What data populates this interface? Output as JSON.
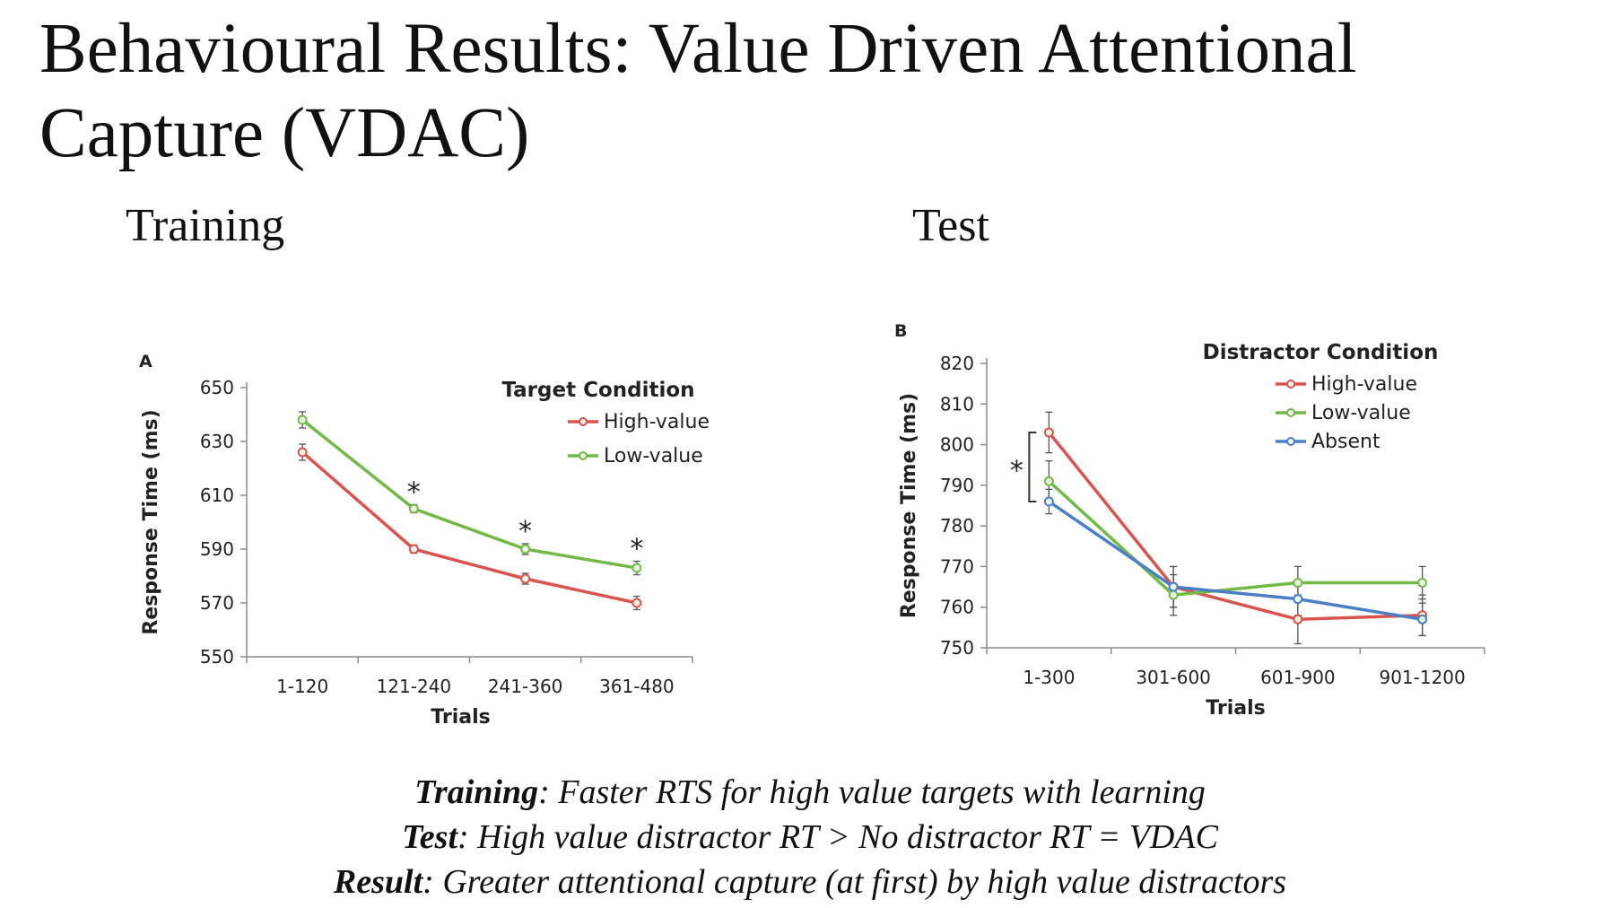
{
  "slide": {
    "title": "Behavioural Results:  Value Driven Attentional Capture (VDAC)",
    "training_heading": "Training",
    "test_heading": "Test"
  },
  "caption": {
    "lines": [
      {
        "bold": "Training",
        "rest": ": Faster RTS for high value targets with learning"
      },
      {
        "bold": "Test",
        "rest": ": High value distractor RT > No distractor RT = VDAC"
      },
      {
        "bold": "Result",
        "rest": ": Greater attentional capture (at first) by high value distractors"
      }
    ]
  },
  "colors": {
    "high_value": "#d9534f",
    "low_value": "#72b948",
    "absent": "#4a7fc8",
    "axis": "#8a8a8a"
  },
  "chart_data": [
    {
      "panel_label": "A",
      "type": "line",
      "xlabel": "Trials",
      "ylabel": "Response Time (ms)",
      "categories": [
        "1-120",
        "121-240",
        "241-360",
        "361-480"
      ],
      "ylim": [
        550,
        650
      ],
      "yticks": [
        550,
        570,
        590,
        610,
        630,
        650
      ],
      "grid": false,
      "legend": {
        "title": "Target Condition",
        "placement": "top-right"
      },
      "series": [
        {
          "name": "High-value",
          "color": "#d9534f",
          "values": [
            626,
            590,
            579,
            570
          ],
          "errors": [
            3,
            1.5,
            2,
            2.5
          ]
        },
        {
          "name": "Low-value",
          "color": "#72b948",
          "values": [
            638,
            605,
            590,
            583
          ],
          "errors": [
            3,
            1.5,
            2,
            2.5
          ]
        }
      ],
      "annotations": [
        {
          "category": "121-240",
          "text": "*"
        },
        {
          "category": "241-360",
          "text": "*"
        },
        {
          "category": "361-480",
          "text": "*"
        }
      ]
    },
    {
      "panel_label": "B",
      "type": "line",
      "xlabel": "Trials",
      "ylabel": "Response Time (ms)",
      "categories": [
        "1-300",
        "301-600",
        "601-900",
        "901-1200"
      ],
      "ylim": [
        750,
        820
      ],
      "yticks": [
        750,
        760,
        770,
        780,
        790,
        800,
        810,
        820
      ],
      "grid": false,
      "legend": {
        "title": "Distractor Condition",
        "placement": "top-right"
      },
      "series": [
        {
          "name": "High-value",
          "color": "#d9534f",
          "values": [
            803,
            765,
            757,
            758
          ],
          "errors": [
            5,
            5,
            6,
            5
          ]
        },
        {
          "name": "Low-value",
          "color": "#72b948",
          "values": [
            791,
            763,
            766,
            766
          ],
          "errors": [
            5,
            5,
            4,
            4
          ]
        },
        {
          "name": "Absent",
          "color": "#4a7fc8",
          "values": [
            786,
            765,
            762,
            757
          ],
          "errors": [
            3,
            5,
            4,
            4
          ]
        }
      ],
      "annotations": [
        {
          "category": "1-300",
          "text": "*"
        }
      ]
    }
  ]
}
